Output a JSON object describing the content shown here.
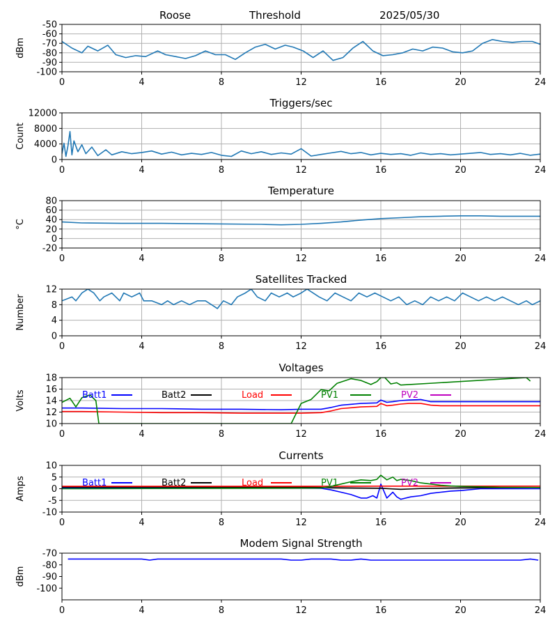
{
  "header": {
    "station": "Roose",
    "mode": "Threshold",
    "date": "2025/05/30"
  },
  "chart_data": [
    {
      "id": "signal",
      "type": "line",
      "title": "",
      "ylabel": "dBm",
      "xlim": [
        0,
        24
      ],
      "ylim": [
        -100,
        -50
      ],
      "yticks": [
        -100,
        -90,
        -80,
        -70,
        -60,
        -50
      ],
      "xticks": [
        0,
        4,
        8,
        12,
        16,
        20,
        24
      ],
      "grid": true,
      "series": [
        {
          "color": "#1f77b4",
          "x": [
            0,
            0.5,
            1,
            1.3,
            1.8,
            2.3,
            2.7,
            3.2,
            3.7,
            4.2,
            4.8,
            5.2,
            5.7,
            6.2,
            6.7,
            7.2,
            7.7,
            8.2,
            8.7,
            9.2,
            9.7,
            10.2,
            10.7,
            11.2,
            11.6,
            12.1,
            12.6,
            13.1,
            13.6,
            14.1,
            14.6,
            15.1,
            15.6,
            16.1,
            16.6,
            17.1,
            17.6,
            18.1,
            18.6,
            19.1,
            19.6,
            20.1,
            20.6,
            21.1,
            21.6,
            22.1,
            22.6,
            23.1,
            23.6,
            24
          ],
          "y": [
            -68,
            -75,
            -80,
            -73,
            -78,
            -72,
            -82,
            -85,
            -83,
            -84,
            -78,
            -82,
            -84,
            -86,
            -83,
            -78,
            -82,
            -82,
            -87,
            -80,
            -74,
            -71,
            -76,
            -72,
            -74,
            -78,
            -85,
            -78,
            -88,
            -85,
            -75,
            -68,
            -78,
            -83,
            -82,
            -80,
            -76,
            -78,
            -74,
            -75,
            -79,
            -80,
            -78,
            -70,
            -66,
            -68,
            -69,
            -68,
            -68,
            -71
          ]
        }
      ]
    },
    {
      "id": "triggers",
      "type": "line",
      "title": "Triggers/sec",
      "ylabel": "Count",
      "xlim": [
        0,
        24
      ],
      "ylim": [
        0,
        12000
      ],
      "yticks": [
        0,
        4000,
        8000,
        12000
      ],
      "xticks": [
        0,
        4,
        8,
        12,
        16,
        20,
        24
      ],
      "grid": true,
      "series": [
        {
          "color": "#1f77b4",
          "x": [
            0,
            0.1,
            0.2,
            0.3,
            0.4,
            0.5,
            0.6,
            0.8,
            1,
            1.2,
            1.5,
            1.8,
            2.2,
            2.5,
            3,
            3.5,
            4,
            4.5,
            5,
            5.5,
            6,
            6.5,
            7,
            7.5,
            8,
            8.5,
            9,
            9.5,
            10,
            10.5,
            11,
            11.5,
            12,
            12.5,
            13,
            13.5,
            14,
            14.5,
            15,
            15.5,
            16,
            16.5,
            17,
            17.5,
            18,
            18.5,
            19,
            19.5,
            20,
            20.5,
            21,
            21.5,
            22,
            22.5,
            23,
            23.5,
            24
          ],
          "y": [
            1500,
            4200,
            800,
            3500,
            7200,
            1200,
            4800,
            2000,
            3800,
            1500,
            3200,
            1000,
            2500,
            1200,
            2000,
            1500,
            1800,
            2200,
            1400,
            1900,
            1200,
            1600,
            1300,
            1800,
            1100,
            800,
            2200,
            1500,
            2000,
            1300,
            1700,
            1400,
            2800,
            900,
            1300,
            1700,
            2100,
            1500,
            1800,
            1200,
            1600,
            1300,
            1500,
            1100,
            1700,
            1300,
            1500,
            1200,
            1400,
            1600,
            1800,
            1300,
            1500,
            1200,
            1600,
            1100,
            1400
          ]
        }
      ]
    },
    {
      "id": "temperature",
      "type": "line",
      "title": "Temperature",
      "ylabel": "°C",
      "xlim": [
        0,
        24
      ],
      "ylim": [
        -20,
        80
      ],
      "yticks": [
        -20,
        0,
        20,
        40,
        60,
        80
      ],
      "xticks": [
        0,
        4,
        8,
        12,
        16,
        20,
        24
      ],
      "grid": true,
      "series": [
        {
          "color": "#1f77b4",
          "x": [
            0,
            1,
            3,
            5,
            7.5,
            10,
            11,
            12,
            13,
            14,
            15,
            16,
            17,
            18,
            19,
            20,
            21,
            22,
            24
          ],
          "y": [
            35,
            33,
            32,
            32,
            31,
            30,
            29,
            30,
            32,
            35,
            39,
            42,
            44,
            46,
            47,
            48,
            48,
            47,
            47
          ]
        }
      ]
    },
    {
      "id": "satellites",
      "type": "line",
      "title": "Satellites Tracked",
      "ylabel": "Number",
      "xlim": [
        0,
        24
      ],
      "ylim": [
        0,
        12
      ],
      "yticks": [
        0,
        4,
        8,
        12
      ],
      "xticks": [
        0,
        4,
        8,
        12,
        16,
        20,
        24
      ],
      "grid": true,
      "series": [
        {
          "color": "#1f77b4",
          "x": [
            0,
            0.5,
            0.7,
            1,
            1.3,
            1.6,
            1.9,
            2.1,
            2.5,
            2.9,
            3.1,
            3.5,
            3.9,
            4.1,
            4.5,
            5,
            5.3,
            5.6,
            6,
            6.4,
            6.8,
            7.2,
            7.5,
            7.8,
            8.1,
            8.5,
            8.8,
            9.2,
            9.5,
            9.8,
            10.2,
            10.5,
            10.9,
            11.3,
            11.6,
            12,
            12.3,
            12.6,
            12.9,
            13.3,
            13.7,
            14.1,
            14.5,
            14.9,
            15.3,
            15.7,
            16.1,
            16.5,
            16.9,
            17.3,
            17.7,
            18.1,
            18.5,
            18.9,
            19.3,
            19.7,
            20.1,
            20.5,
            20.9,
            21.3,
            21.7,
            22.1,
            22.5,
            22.9,
            23.3,
            23.6,
            24
          ],
          "y": [
            9,
            10,
            9,
            11,
            12,
            11,
            9,
            10,
            11,
            9,
            11,
            10,
            11,
            9,
            9,
            8,
            9,
            8,
            9,
            8,
            9,
            9,
            8,
            7,
            9,
            8,
            10,
            11,
            12,
            10,
            9,
            11,
            10,
            11,
            10,
            11,
            12,
            11,
            10,
            9,
            11,
            10,
            9,
            11,
            10,
            11,
            10,
            9,
            10,
            8,
            9,
            8,
            10,
            9,
            10,
            9,
            11,
            10,
            9,
            10,
            9,
            10,
            9,
            8,
            9,
            8,
            9
          ]
        }
      ]
    },
    {
      "id": "voltages",
      "type": "line",
      "title": "Voltages",
      "ylabel": "Volts",
      "xlim": [
        0,
        24
      ],
      "ylim": [
        10,
        18
      ],
      "yticks": [
        10,
        12,
        14,
        16,
        18
      ],
      "xticks": [
        0,
        4,
        8,
        12,
        16,
        20,
        24
      ],
      "grid": true,
      "legend": [
        "Batt1",
        "Batt2",
        "Load",
        "PV1",
        "PV2"
      ],
      "series": [
        {
          "name": "Batt1",
          "color": "#0000ff",
          "x": [
            0,
            1,
            3,
            5,
            7,
            9,
            11,
            12,
            13,
            13.5,
            14,
            15,
            15.8,
            16,
            16.3,
            16.6,
            17,
            17.4,
            18,
            18.5,
            19,
            20,
            22,
            24
          ],
          "y": [
            12.7,
            12.7,
            12.6,
            12.6,
            12.5,
            12.5,
            12.4,
            12.5,
            12.5,
            12.8,
            13.2,
            13.5,
            13.6,
            14.1,
            13.7,
            13.8,
            14.0,
            14.1,
            14.2,
            13.8,
            13.8,
            13.8,
            13.8,
            13.8
          ]
        },
        {
          "name": "Batt2",
          "color": "#000000",
          "x": [],
          "y": []
        },
        {
          "name": "Load",
          "color": "#ff0000",
          "x": [
            0,
            1,
            3,
            5,
            7,
            9,
            11,
            12,
            13,
            13.5,
            14,
            15,
            15.8,
            16,
            16.3,
            16.6,
            17,
            17.4,
            18,
            18.5,
            19,
            20,
            22,
            24
          ],
          "y": [
            12.1,
            12.1,
            12.0,
            11.9,
            11.9,
            11.8,
            11.8,
            11.8,
            11.9,
            12.2,
            12.6,
            12.9,
            13.0,
            13.5,
            13.1,
            13.2,
            13.4,
            13.5,
            13.5,
            13.2,
            13.1,
            13.1,
            13.1,
            13.1
          ]
        },
        {
          "name": "PV1",
          "color": "#008000",
          "x": [
            0,
            0.4,
            0.7,
            1,
            1.4,
            1.7,
            1.85,
            11.5,
            12,
            12.5,
            13,
            13.4,
            13.8,
            14.5,
            15,
            15.5,
            15.8,
            16,
            16.2,
            16.5,
            16.8,
            17,
            23.3,
            23.5
          ],
          "y": [
            13.7,
            14.4,
            12.9,
            14.5,
            15.0,
            14.0,
            10.0,
            10.0,
            13.5,
            14.2,
            15.9,
            15.7,
            17.0,
            17.8,
            17.5,
            16.8,
            17.3,
            18.0,
            18.0,
            16.9,
            17.1,
            16.7,
            18.0,
            17.4
          ]
        },
        {
          "name": "PV2",
          "color": "#bf00bf",
          "x": [],
          "y": []
        }
      ]
    },
    {
      "id": "currents",
      "type": "line",
      "title": "Currents",
      "ylabel": "Amps",
      "xlim": [
        0,
        24
      ],
      "ylim": [
        -10,
        10
      ],
      "yticks": [
        -10,
        -5,
        0,
        5,
        10
      ],
      "xticks": [
        0,
        4,
        8,
        12,
        16,
        20,
        24
      ],
      "grid": true,
      "legend": [
        "Batt1",
        "Batt2",
        "Load",
        "PV1",
        "PV2"
      ],
      "series": [
        {
          "name": "Batt1",
          "color": "#0000ff",
          "x": [
            0,
            4,
            8,
            12,
            13,
            13.5,
            14,
            14.5,
            15,
            15.3,
            15.6,
            15.8,
            16,
            16.3,
            16.6,
            16.8,
            17,
            17.5,
            18,
            18.5,
            19,
            19.5,
            20,
            21,
            22,
            23,
            24
          ],
          "y": [
            0.3,
            0.3,
            0.3,
            0.3,
            0.2,
            -0.5,
            -1.5,
            -2.5,
            -4.0,
            -4.0,
            -3.0,
            -4.0,
            2.0,
            -4.0,
            -1.5,
            -3.5,
            -4.5,
            -3.5,
            -3.0,
            -2.0,
            -1.5,
            -1.0,
            -0.8,
            0,
            0,
            0,
            0
          ]
        },
        {
          "name": "Batt2",
          "color": "#000000",
          "x": [
            0,
            12,
            14,
            16,
            17,
            18,
            20,
            24
          ],
          "y": [
            0.7,
            0.7,
            0.4,
            0.2,
            -0.3,
            0.1,
            0.4,
            0.5
          ]
        },
        {
          "name": "Load",
          "color": "#ff0000",
          "x": [
            0,
            12,
            16,
            24
          ],
          "y": [
            1.0,
            1.0,
            1.1,
            1.1
          ]
        },
        {
          "name": "PV1",
          "color": "#008000",
          "x": [
            0,
            13,
            13.5,
            14,
            14.5,
            15,
            15.5,
            15.8,
            16,
            16.3,
            16.6,
            16.8,
            17,
            17.5,
            18,
            18.5,
            19,
            19.5,
            20,
            21,
            22,
            24
          ],
          "y": [
            0,
            0.3,
            1.0,
            2.0,
            3.0,
            3.8,
            3.5,
            4.0,
            5.8,
            3.8,
            5.0,
            3.5,
            4.0,
            3.5,
            2.5,
            2.0,
            1.5,
            1.2,
            1.0,
            0.8,
            0.6,
            0.5
          ]
        },
        {
          "name": "PV2",
          "color": "#bf00bf",
          "x": [],
          "y": []
        }
      ]
    },
    {
      "id": "modem",
      "type": "line",
      "title": "Modem Signal Strength",
      "ylabel": "dBm",
      "xlim": [
        0,
        24
      ],
      "ylim": [
        -110,
        -70
      ],
      "yticks": [
        -100,
        -90,
        -80,
        -70
      ],
      "xticks": [
        0,
        4,
        8,
        12,
        16,
        20,
        24
      ],
      "grid": false,
      "series": [
        {
          "color": "#0000ff",
          "x": [
            0.3,
            1,
            2,
            3,
            4,
            4.4,
            4.8,
            6,
            8,
            10,
            11,
            11.5,
            12,
            12.5,
            13,
            13.5,
            14,
            14.5,
            15,
            15.5,
            16,
            18,
            20,
            22,
            23,
            23.5,
            23.9
          ],
          "y": [
            -75,
            -75,
            -75,
            -75,
            -75,
            -76,
            -75,
            -75,
            -75,
            -75,
            -75,
            -76,
            -76,
            -75,
            -75,
            -75,
            -76,
            -76,
            -75,
            -76,
            -76,
            -76,
            -76,
            -76,
            -76,
            -75,
            -76
          ]
        }
      ]
    }
  ]
}
